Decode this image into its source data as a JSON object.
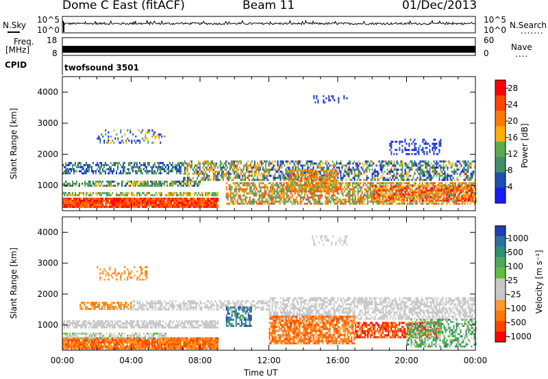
{
  "header": {
    "station": "Dome C East (fitACF)",
    "beam": "Beam 11",
    "date": "01/Dec/2013"
  },
  "nsky_panel": {
    "left_label": "N.Sky",
    "right_label": "N.Search",
    "right_marker": ".......",
    "ticks": [
      "10^5",
      "10^0"
    ]
  },
  "freq_panel": {
    "left_label_line1": "Freq.",
    "left_label_line2": "[MHz]",
    "left_ticks": [
      "18",
      "8"
    ],
    "right_ticks": [
      "60",
      "0"
    ],
    "right_label": "Nave",
    "right_marker": "...."
  },
  "cpid_panel": {
    "label": "CPID",
    "value": "twofsound 3501"
  },
  "colors": {
    "power_scale": [
      "#1a1aff",
      "#1f4fb0",
      "#3f8f6a",
      "#5caa4f",
      "#ffb000",
      "#ff7a00",
      "#ff4500",
      "#ff0000"
    ],
    "velocity_scale": [
      "#1f3fb0",
      "#2f70a0",
      "#2f8f6f",
      "#4fa85a",
      "#63bf3f",
      "#c8c8c8",
      "#c8c8c8",
      "#ff9a30",
      "#ff7800",
      "#ff4500",
      "#ff0000"
    ]
  },
  "chart_data": [
    {
      "type": "heatmap",
      "name": "power",
      "ylabel": "Slant Range [km]",
      "xlabel": "",
      "ylim": [
        180,
        4500
      ],
      "xlim_hours": [
        0,
        24
      ],
      "yticks": [
        "1000",
        "2000",
        "3000",
        "4000"
      ],
      "colorbar": {
        "label": "Power [dB]",
        "ticks": [
          "4",
          "8",
          "12",
          "16",
          "20",
          "24",
          "28"
        ],
        "range": [
          0,
          30
        ]
      }
    },
    {
      "type": "heatmap",
      "name": "velocity",
      "ylabel": "Slant Range [km]",
      "xlabel": "Time UT",
      "ylim": [
        180,
        4500
      ],
      "xlim_hours": [
        0,
        24
      ],
      "xticks": [
        "00:00",
        "04:00",
        "08:00",
        "12:00",
        "16:00",
        "20:00",
        "00:00"
      ],
      "yticks": [
        "1000",
        "2000",
        "3000",
        "4000"
      ],
      "colorbar": {
        "label": "Velocity [m s⁻¹]",
        "ticks": [
          "1000",
          "500",
          "100",
          "25",
          "-25",
          "-100",
          "-500",
          "-1000"
        ]
      }
    }
  ]
}
